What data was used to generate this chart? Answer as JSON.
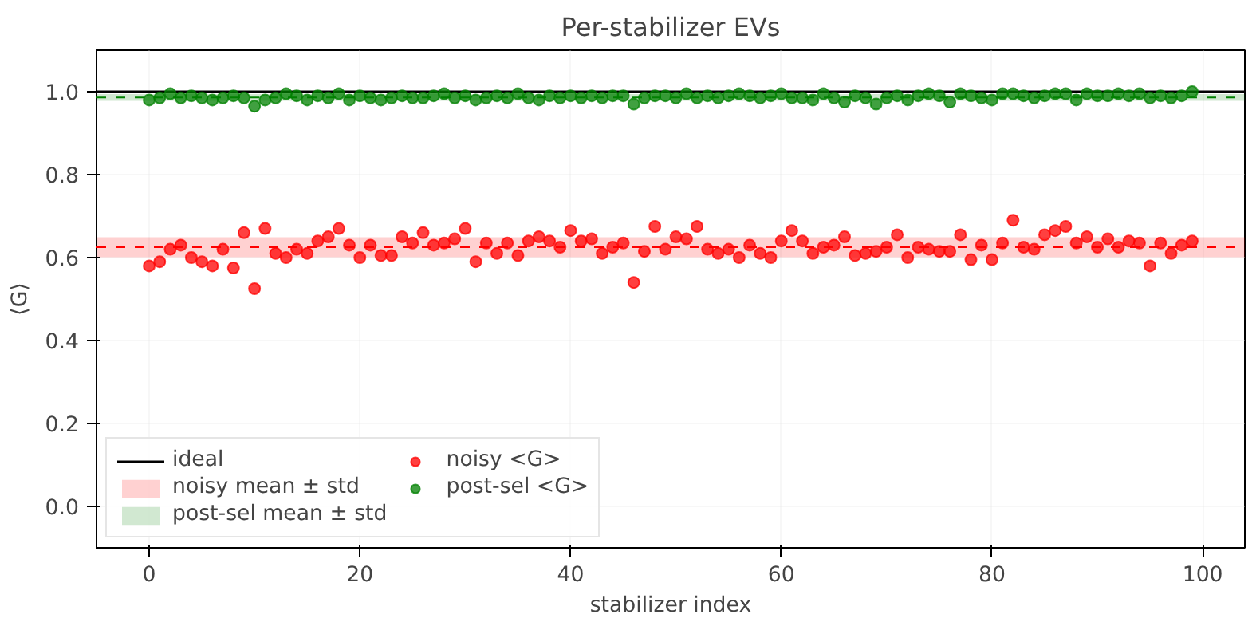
{
  "chart_data": {
    "type": "scatter",
    "title": "Per-stabilizer EVs",
    "xlabel": "stabilizer index",
    "ylabel": "⟨G⟩",
    "x": [
      0,
      1,
      2,
      3,
      4,
      5,
      6,
      7,
      8,
      9,
      10,
      11,
      12,
      13,
      14,
      15,
      16,
      17,
      18,
      19,
      20,
      21,
      22,
      23,
      24,
      25,
      26,
      27,
      28,
      29,
      30,
      31,
      32,
      33,
      34,
      35,
      36,
      37,
      38,
      39,
      40,
      41,
      42,
      43,
      44,
      45,
      46,
      47,
      48,
      49,
      50,
      51,
      52,
      53,
      54,
      55,
      56,
      57,
      58,
      59,
      60,
      61,
      62,
      63,
      64,
      65,
      66,
      67,
      68,
      69,
      70,
      71,
      72,
      73,
      74,
      75,
      76,
      77,
      78,
      79,
      80,
      81,
      82,
      83,
      84,
      85,
      86,
      87,
      88,
      89,
      90,
      91,
      92,
      93,
      94,
      95,
      96,
      97,
      98,
      99
    ],
    "series": [
      {
        "name": "noisy <G>",
        "color": "#ff0000",
        "values": [
          0.58,
          0.59,
          0.62,
          0.63,
          0.6,
          0.59,
          0.58,
          0.62,
          0.575,
          0.66,
          0.525,
          0.67,
          0.61,
          0.6,
          0.62,
          0.61,
          0.64,
          0.65,
          0.67,
          0.63,
          0.6,
          0.63,
          0.605,
          0.605,
          0.65,
          0.635,
          0.66,
          0.63,
          0.635,
          0.645,
          0.67,
          0.59,
          0.635,
          0.61,
          0.635,
          0.605,
          0.64,
          0.65,
          0.64,
          0.625,
          0.665,
          0.64,
          0.645,
          0.61,
          0.625,
          0.635,
          0.54,
          0.615,
          0.675,
          0.62,
          0.65,
          0.645,
          0.675,
          0.62,
          0.61,
          0.62,
          0.6,
          0.63,
          0.61,
          0.6,
          0.64,
          0.665,
          0.64,
          0.61,
          0.625,
          0.63,
          0.65,
          0.605,
          0.61,
          0.615,
          0.625,
          0.655,
          0.6,
          0.625,
          0.62,
          0.615,
          0.615,
          0.655,
          0.595,
          0.63,
          0.595,
          0.635,
          0.69,
          0.625,
          0.62,
          0.655,
          0.665,
          0.675,
          0.635,
          0.65,
          0.625,
          0.645,
          0.625,
          0.64,
          0.635,
          0.58,
          0.635,
          0.61,
          0.63,
          0.64
        ]
      },
      {
        "name": "post-sel <G>",
        "color": "#008000",
        "values": [
          0.98,
          0.985,
          0.995,
          0.985,
          0.99,
          0.985,
          0.98,
          0.985,
          0.99,
          0.985,
          0.965,
          0.98,
          0.985,
          0.995,
          0.99,
          0.98,
          0.99,
          0.985,
          0.995,
          0.98,
          0.99,
          0.985,
          0.98,
          0.985,
          0.99,
          0.985,
          0.985,
          0.99,
          0.995,
          0.985,
          0.99,
          0.98,
          0.985,
          0.99,
          0.985,
          0.995,
          0.985,
          0.98,
          0.99,
          0.985,
          0.99,
          0.985,
          0.99,
          0.985,
          0.99,
          0.99,
          0.97,
          0.985,
          0.99,
          0.99,
          0.985,
          0.995,
          0.985,
          0.99,
          0.985,
          0.99,
          0.995,
          0.99,
          0.985,
          0.99,
          0.995,
          0.985,
          0.985,
          0.98,
          0.995,
          0.985,
          0.975,
          0.99,
          0.985,
          0.97,
          0.985,
          0.99,
          0.98,
          0.99,
          0.995,
          0.99,
          0.975,
          0.995,
          0.99,
          0.985,
          0.98,
          0.995,
          0.995,
          0.99,
          0.985,
          0.99,
          0.995,
          0.995,
          0.98,
          0.995,
          0.99,
          0.99,
          0.995,
          0.99,
          0.995,
          0.985,
          0.99,
          0.985,
          0.99,
          1.0
        ]
      }
    ],
    "ref_lines": [
      {
        "axis": "y",
        "value": 1.0,
        "label": "ideal",
        "color": "#000000",
        "line_style": "solid"
      },
      {
        "axis": "y",
        "value": 0.625,
        "label": null,
        "color": "#ff0000",
        "line_style": "dashed"
      },
      {
        "axis": "y",
        "value": 0.986,
        "label": null,
        "color": "#008000",
        "line_style": "dashed"
      }
    ],
    "bands": [
      {
        "axis": "y",
        "from": 0.601,
        "to": 0.649,
        "label": "noisy mean ± std",
        "color": "#ff0000"
      },
      {
        "axis": "y",
        "from": 0.978,
        "to": 0.994,
        "label": "post-sel mean ± std",
        "color": "#008000"
      }
    ],
    "xlim": [
      -5,
      104
    ],
    "ylim": [
      -0.1,
      1.1
    ],
    "xticks": [
      0,
      20,
      40,
      60,
      80,
      100
    ],
    "yticks": [
      {
        "value": 0.0,
        "label": "0.0"
      },
      {
        "value": 0.2,
        "label": "0.2"
      },
      {
        "value": 0.4,
        "label": "0.4"
      },
      {
        "value": 0.6,
        "label": "0.6"
      },
      {
        "value": 0.8,
        "label": "0.8"
      },
      {
        "value": 1.0,
        "label": "1.0"
      }
    ],
    "grid": true,
    "legend": "bottom left",
    "marker": "circle"
  }
}
